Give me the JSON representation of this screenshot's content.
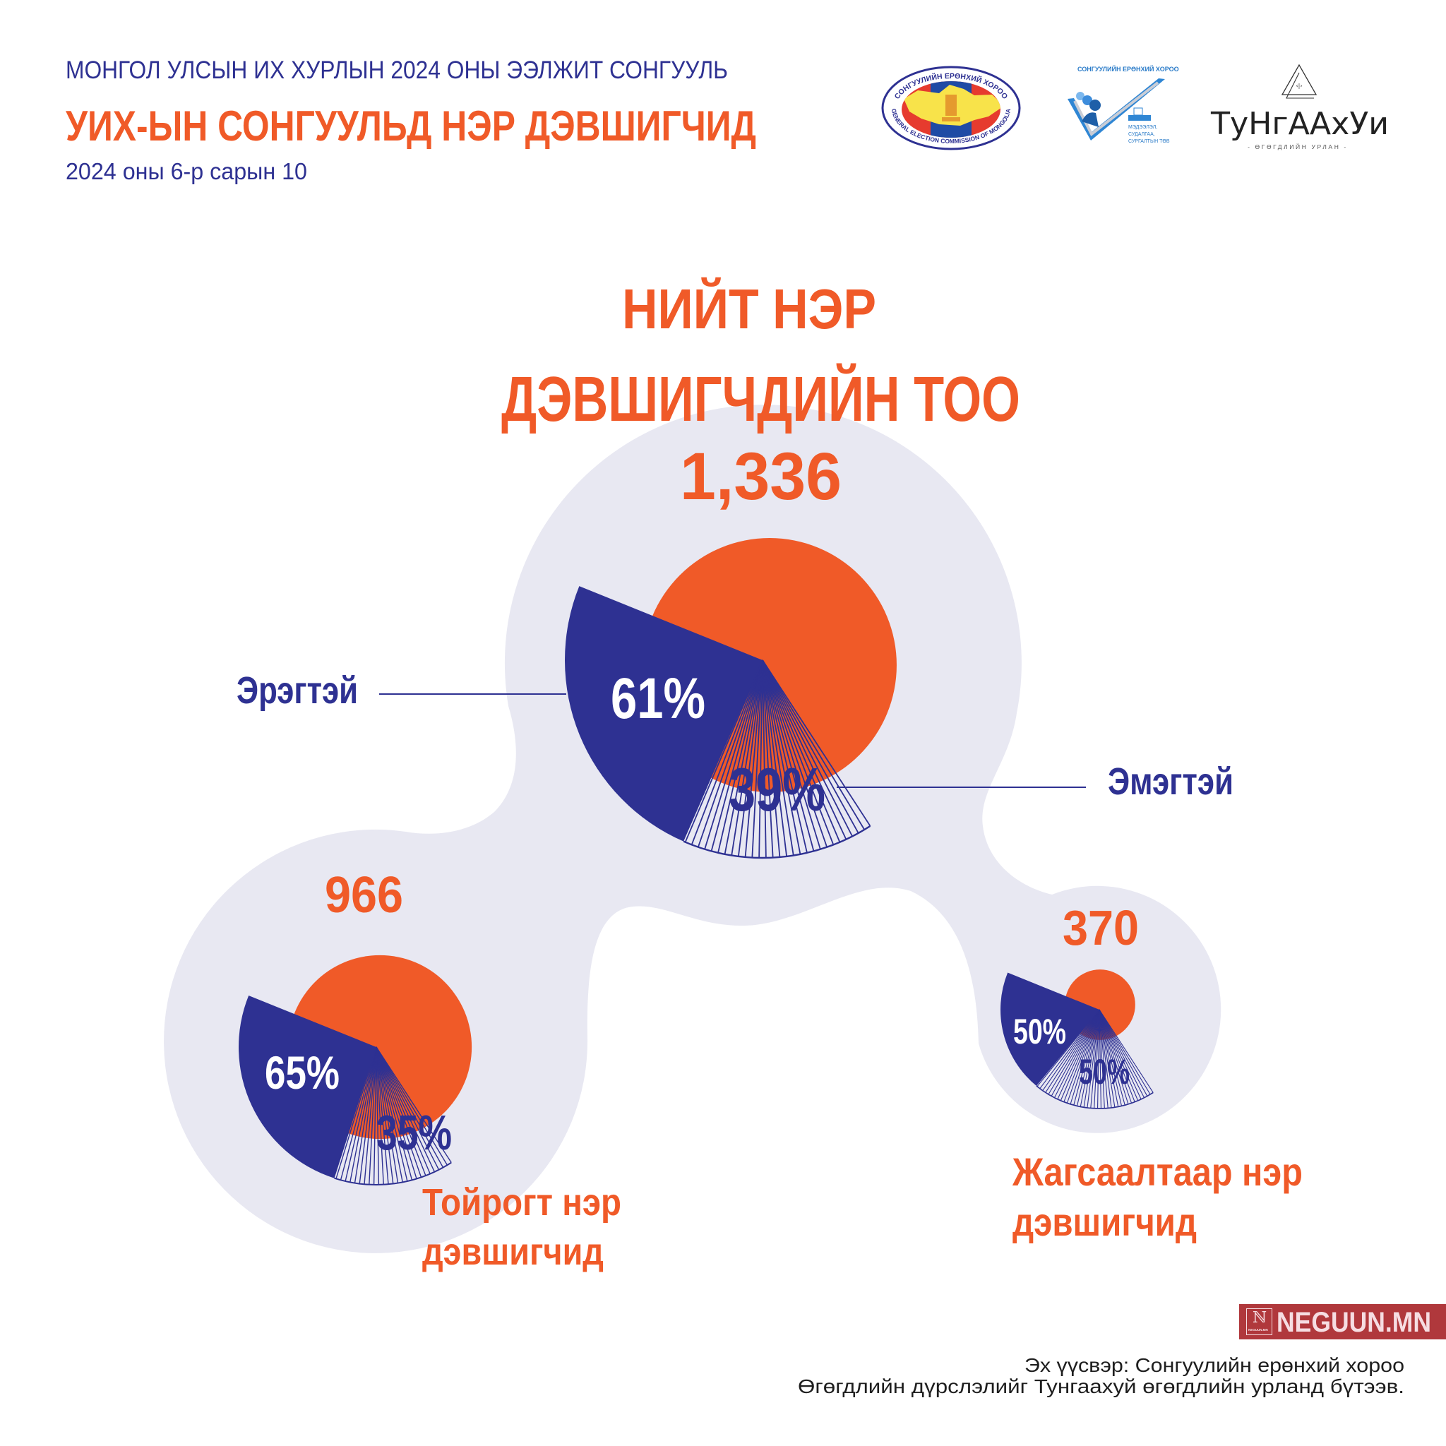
{
  "header": {
    "kicker": "МОНГОЛ УЛСЫН ИХ ХУРЛЫН 2024 ОНЫ ЭЭЛЖИТ СОНГУУЛЬ",
    "title": "УИХ-ЫН СОНГУУЛЬД НЭР ДЭВШИГЧИД",
    "date": "2024 оны 6-р сарын 10"
  },
  "logos": {
    "gec_top": "СОНГУУЛИЙН ЕРӨНХИЙ ХОРОО",
    "gec_bottom": "GENERAL ELECTION COMMISSION OF MONGOLIA",
    "training_top": "СОНГУУЛИЙН ЕРӨНХИЙ ХОРОО",
    "training_lines": [
      "МЭДЭЭЛЭЛ,",
      "СУДАЛГАА,",
      "СУРГАЛТЫН ТӨВ"
    ],
    "tungaakhui_wordmark": "ТуНгААхУи",
    "tungaakhui_tagline": "- ӨГӨГДЛИЙН УРЛАН -"
  },
  "chart_data": {
    "type": "pie",
    "title": "НИЙТ НЭР ДЭВШИГЧДИЙН ТОО",
    "title_lines": [
      "НИЙТ НЭР",
      "ДЭВШИГЧДИЙН ТОО"
    ],
    "legend": {
      "male": "Эрэгтэй",
      "female": "Эмэгтэй"
    },
    "colors": {
      "total": "#F05A28",
      "male": "#2E3192",
      "female_hatch": "#2E3192",
      "bubble": "#E8E8F2"
    },
    "series": [
      {
        "total": 1336,
        "total_label": "1,336",
        "male_pct": 61,
        "female_pct": 39,
        "male_label": "61%",
        "female_label": "39%"
      },
      {
        "name_lines": [
          "Тойрогт нэр",
          "дэвшигчид"
        ],
        "total": 966,
        "total_label": "966",
        "male_pct": 65,
        "female_pct": 35,
        "male_label": "65%",
        "female_label": "35%"
      },
      {
        "name_lines": [
          "Жагсаалтаар нэр",
          "дэвшигчид"
        ],
        "total": 370,
        "total_label": "370",
        "male_pct": 50,
        "female_pct": 50,
        "male_label": "50%",
        "female_label": "50%"
      }
    ]
  },
  "branding": {
    "watermark": "NEGUUN.MN",
    "watermark_mark_text": "NEGUUN.MN"
  },
  "footer": {
    "source": "Эх үүсвэр: Сонгуулийн ерөнхий хороо",
    "credit": "Өгөгдлийн дүрслэлийг Тунгаахуй өгөгдлийн урланд бүтээв."
  }
}
